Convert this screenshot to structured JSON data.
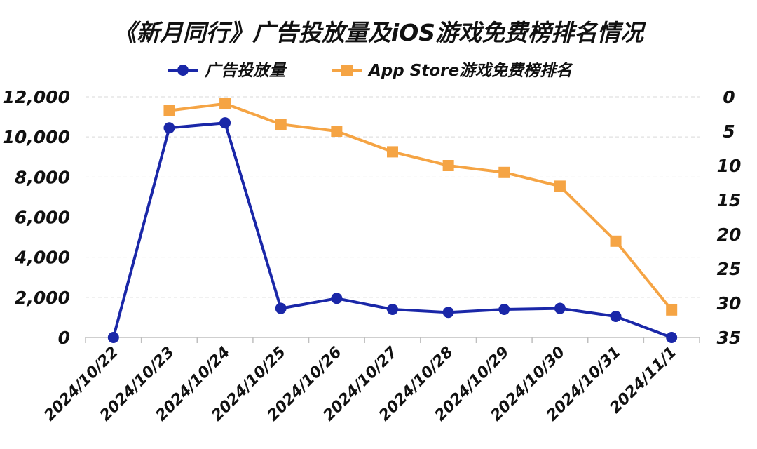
{
  "chart_data": {
    "type": "line",
    "title": "《新月同行》广告投放量及iOS游戏免费榜排名情况",
    "categories": [
      "2024/10/22",
      "2024/10/23",
      "2024/10/24",
      "2024/10/25",
      "2024/10/26",
      "2024/10/27",
      "2024/10/28",
      "2024/10/29",
      "2024/10/30",
      "2024/10/31",
      "2024/11/1"
    ],
    "y_left": {
      "ticks": [
        "0",
        "2,000",
        "4,000",
        "6,000",
        "8,000",
        "10,000",
        "12,000"
      ],
      "range": [
        0,
        12000
      ]
    },
    "y_right": {
      "ticks": [
        "0",
        "5",
        "10",
        "15",
        "20",
        "25",
        "30",
        "35"
      ],
      "range": [
        0,
        35
      ],
      "inverted": true
    },
    "legend_position": "top-center",
    "grid": true,
    "series": [
      {
        "name": "广告投放量",
        "axis": "left",
        "marker": "circle",
        "color": "#1a27a8",
        "values": [
          0,
          10450,
          10700,
          1450,
          1950,
          1400,
          1250,
          1400,
          1450,
          1050,
          0
        ]
      },
      {
        "name": "App Store游戏免费榜排名",
        "axis": "right",
        "marker": "square",
        "color": "#f5a444",
        "values": [
          null,
          2,
          1,
          4,
          5,
          8,
          10,
          11,
          13,
          21,
          31
        ]
      }
    ]
  }
}
